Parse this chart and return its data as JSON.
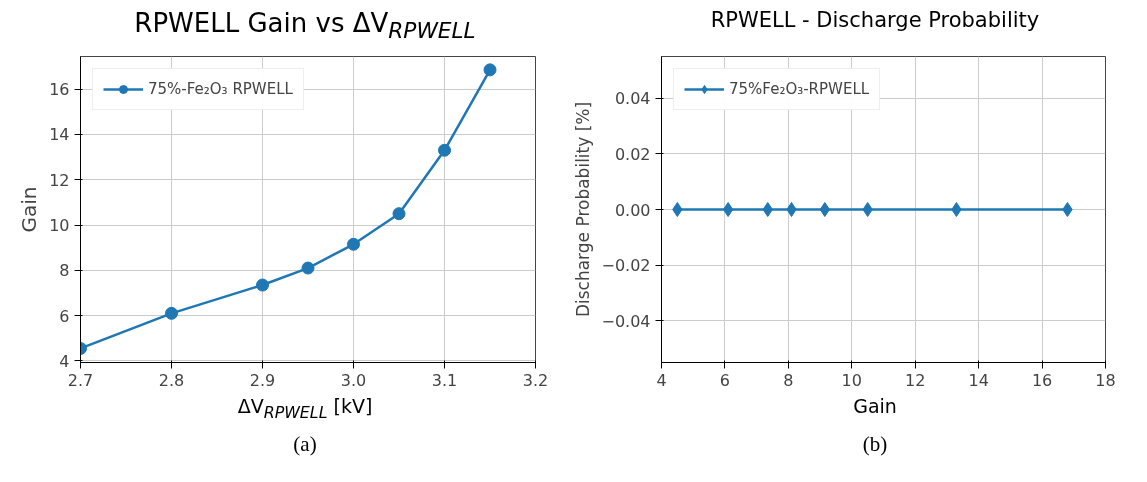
{
  "chart_data": [
    {
      "type": "line",
      "title": "RPWELL Gain vs ΔV$_{RPWELL}$",
      "xlabel": "ΔV$_{RPWELL}$ [kV]",
      "ylabel": "Gain",
      "x": [
        2.7,
        2.8,
        2.9,
        2.95,
        3.0,
        3.05,
        3.1,
        3.15
      ],
      "series": [
        {
          "name": "75%-Fe₂O₃ RPWELL",
          "color": "#1f77b4",
          "values": [
            4.55,
            6.1,
            7.35,
            8.1,
            9.15,
            10.5,
            13.3,
            16.85
          ]
        }
      ],
      "xlim": [
        2.7,
        3.2
      ],
      "xticks": [
        2.7,
        2.8,
        2.9,
        {
          "value": 3.0,
          "label": "3.0"
        },
        3.1,
        3.2
      ],
      "ylim": [
        3.93,
        17.44
      ],
      "yticks": [
        4,
        6,
        8,
        10,
        12,
        14,
        16
      ],
      "grid": true,
      "legend": "top left",
      "marker": "circle",
      "annotations": [
        "(a)"
      ]
    },
    {
      "type": "line",
      "title": "RPWELL - Discharge Probability",
      "xlabel": "Gain",
      "ylabel": "Discharge Probability [%]",
      "x": [
        4.5,
        6.1,
        7.35,
        8.1,
        9.15,
        10.5,
        13.3,
        16.8
      ],
      "series": [
        {
          "name": "75%Fe₂O₃-RPWELL",
          "color": "#1f77b4",
          "values": [
            0,
            0,
            0,
            0,
            0,
            0,
            0,
            0
          ]
        }
      ],
      "xlim": [
        4,
        18
      ],
      "xticks": [
        4,
        6,
        8,
        10,
        12,
        14,
        16,
        18
      ],
      "ylim": [
        -0.055,
        0.055
      ],
      "yticks": [
        {
          "value": -0.04,
          "label": "−0.04"
        },
        {
          "value": -0.02,
          "label": "−0.02"
        },
        {
          "value": 0,
          "label": "0.00"
        },
        {
          "value": 0.02,
          "label": "0.02"
        },
        {
          "value": 0.04,
          "label": "0.04"
        }
      ],
      "grid": true,
      "legend": "top left",
      "marker": "diamond",
      "annotations": [
        "(b)"
      ]
    }
  ]
}
